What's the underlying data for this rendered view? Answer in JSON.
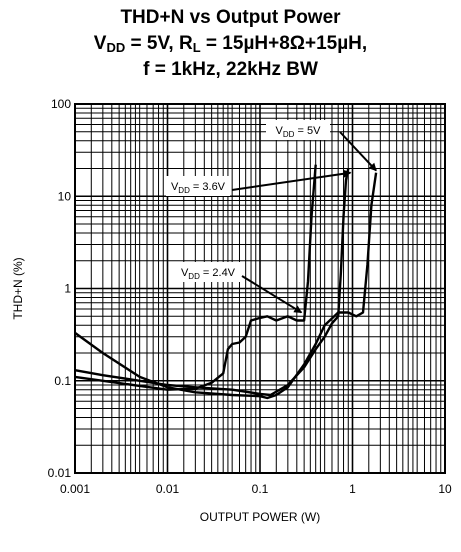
{
  "chart_data": {
    "type": "line",
    "title_line1": "THD+N vs Output Power",
    "title_line2": {
      "v": "V",
      "v_sub": "DD",
      "v_value": " = 5V, R",
      "r_sub": "L",
      "r_value": " = 15µH+8Ω+15µH,"
    },
    "title_line3": "f = 1kHz, 22kHz BW",
    "xlabel": "OUTPUT POWER (W)",
    "ylabel": "THD+N (%)",
    "xscale": "log",
    "yscale": "log",
    "xlim": [
      0.001,
      10
    ],
    "ylim": [
      0.01,
      100
    ],
    "grid": true,
    "x_tick_labels": [
      "0.001",
      "0.01",
      "0.1",
      "1",
      "10"
    ],
    "y_tick_labels": [
      "0.01",
      "0.1",
      "1",
      "10",
      "100"
    ],
    "series": [
      {
        "name": "VDD = 5V",
        "label_main": "V",
        "label_sub": "DD",
        "label_tail": " = 5V",
        "points": [
          [
            0.001,
            0.33
          ],
          [
            0.002,
            0.2
          ],
          [
            0.005,
            0.11
          ],
          [
            0.01,
            0.085
          ],
          [
            0.02,
            0.075
          ],
          [
            0.05,
            0.07
          ],
          [
            0.1,
            0.068
          ],
          [
            0.12,
            0.065
          ],
          [
            0.15,
            0.07
          ],
          [
            0.2,
            0.085
          ],
          [
            0.3,
            0.15
          ],
          [
            0.4,
            0.25
          ],
          [
            0.5,
            0.4
          ],
          [
            0.7,
            0.55
          ],
          [
            0.9,
            0.55
          ],
          [
            1.1,
            0.5
          ],
          [
            1.3,
            0.55
          ],
          [
            1.45,
            1.8
          ],
          [
            1.6,
            8
          ],
          [
            1.8,
            18
          ]
        ]
      },
      {
        "name": "VDD = 3.6V",
        "label_main": "V",
        "label_sub": "DD",
        "label_tail": " = 3.6V",
        "points": [
          [
            0.001,
            0.13
          ],
          [
            0.002,
            0.115
          ],
          [
            0.005,
            0.1
          ],
          [
            0.01,
            0.09
          ],
          [
            0.02,
            0.085
          ],
          [
            0.05,
            0.08
          ],
          [
            0.1,
            0.072
          ],
          [
            0.13,
            0.07
          ],
          [
            0.2,
            0.09
          ],
          [
            0.3,
            0.14
          ],
          [
            0.4,
            0.22
          ],
          [
            0.5,
            0.3
          ],
          [
            0.6,
            0.42
          ],
          [
            0.7,
            0.5
          ],
          [
            0.75,
            1.5
          ],
          [
            0.8,
            6
          ],
          [
            0.85,
            15
          ],
          [
            0.9,
            20
          ]
        ]
      },
      {
        "name": "VDD = 2.4V",
        "label_main": "V",
        "label_sub": "DD",
        "label_tail": " = 2.4V",
        "points": [
          [
            0.001,
            0.11
          ],
          [
            0.002,
            0.1
          ],
          [
            0.005,
            0.088
          ],
          [
            0.01,
            0.08
          ],
          [
            0.02,
            0.082
          ],
          [
            0.03,
            0.095
          ],
          [
            0.04,
            0.12
          ],
          [
            0.045,
            0.22
          ],
          [
            0.05,
            0.25
          ],
          [
            0.06,
            0.26
          ],
          [
            0.07,
            0.3
          ],
          [
            0.08,
            0.45
          ],
          [
            0.1,
            0.48
          ],
          [
            0.12,
            0.5
          ],
          [
            0.15,
            0.45
          ],
          [
            0.2,
            0.5
          ],
          [
            0.25,
            0.45
          ],
          [
            0.3,
            0.45
          ],
          [
            0.33,
            1.2
          ],
          [
            0.36,
            6
          ],
          [
            0.4,
            22
          ]
        ]
      }
    ]
  }
}
